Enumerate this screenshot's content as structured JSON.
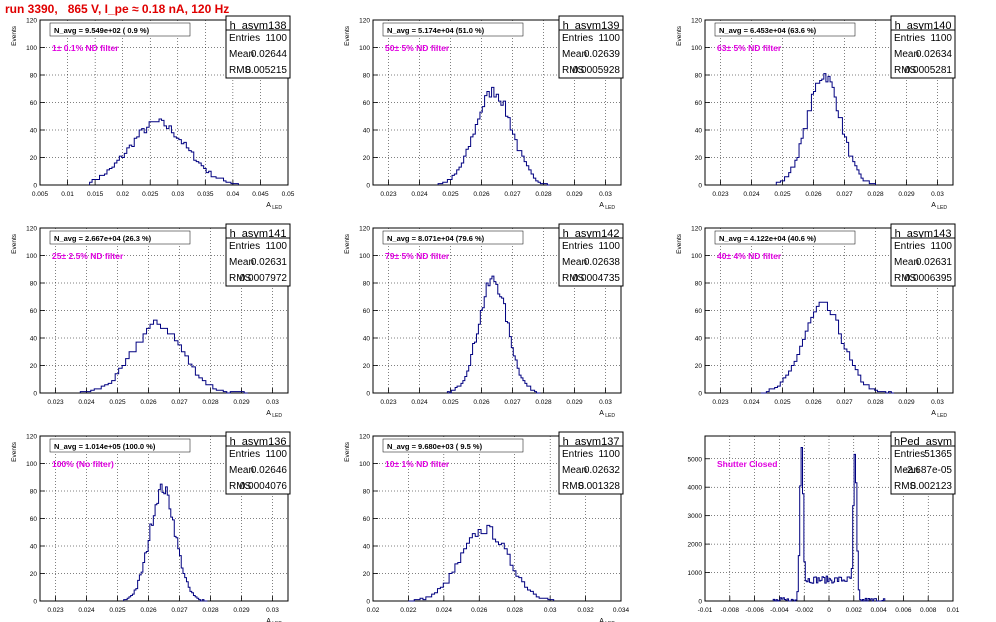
{
  "run_title": "run 3390,   865 V, I_pe ≈ 0.18 nA, 120 Hz",
  "stats_labels": {
    "entries": "Entries",
    "mean": "Mean",
    "rms": "RMS"
  },
  "colors": {
    "histogram": "#000080",
    "title": "#e00000",
    "annotation": "#e000e0",
    "grid": "#000000"
  },
  "chart_data": [
    {
      "type": "histogram",
      "name": "h_asym138",
      "entries": "1100",
      "mean": "0.02644",
      "rms": "0.005215",
      "navg": "N_avg = 9.549e+02 ( 0.9 %)",
      "filter": "1± 0.1% ND filter",
      "xlim": [
        0.005,
        0.05
      ],
      "ylim": [
        0,
        120
      ],
      "xticks": [
        0.005,
        0.01,
        0.015,
        0.02,
        0.025,
        0.03,
        0.035,
        0.04,
        0.045,
        0.05
      ],
      "xticklabels": [
        "0.005",
        "0.01",
        "0.015",
        "0.02",
        "0.025",
        "0.03",
        "0.035",
        "0.04",
        "0.045",
        "0.05"
      ],
      "yticks": [
        0,
        20,
        40,
        60,
        80,
        100,
        120
      ],
      "yticklabels": [
        "0",
        "20",
        "40",
        "60",
        "80",
        "100",
        "120"
      ],
      "xlabel": "A_LED",
      "ylabel": "Events",
      "profile": {
        "center": 0.02644,
        "sigma": 0.0052,
        "peak": 45,
        "xmin": 0.014,
        "xmax": 0.041,
        "bins": 60
      }
    },
    {
      "type": "histogram",
      "name": "h_asym139",
      "entries": "1100",
      "mean": "0.02639",
      "rms": "0.0005928",
      "navg": "N_avg = 5.174e+04 (51.0 %)",
      "filter": "50± 5% ND filter",
      "xlim": [
        0.0225,
        0.0305
      ],
      "ylim": [
        0,
        120
      ],
      "xticks": [
        0.023,
        0.024,
        0.025,
        0.026,
        0.027,
        0.028,
        0.029,
        0.03
      ],
      "xticklabels": [
        "0.023",
        "0.024",
        "0.025",
        "0.026",
        "0.027",
        "0.028",
        "0.029",
        "0.03"
      ],
      "yticks": [
        0,
        20,
        40,
        60,
        80,
        100,
        120
      ],
      "yticklabels": [
        "0",
        "20",
        "40",
        "60",
        "80",
        "100",
        "120"
      ],
      "xlabel": "A_LED",
      "ylabel": "Events",
      "profile": {
        "center": 0.02639,
        "sigma": 0.00059,
        "peak": 68,
        "xmin": 0.0246,
        "xmax": 0.0282,
        "bins": 48
      }
    },
    {
      "type": "histogram",
      "name": "h_asym140",
      "entries": "1100",
      "mean": "0.02634",
      "rms": "0.0005281",
      "navg": "N_avg = 6.453e+04 (63.6 %)",
      "filter": "63± 5% ND filter",
      "xlim": [
        0.0225,
        0.0305
      ],
      "ylim": [
        0,
        120
      ],
      "xticks": [
        0.023,
        0.024,
        0.025,
        0.026,
        0.027,
        0.028,
        0.029,
        0.03
      ],
      "xticklabels": [
        "0.023",
        "0.024",
        "0.025",
        "0.026",
        "0.027",
        "0.028",
        "0.029",
        "0.03"
      ],
      "yticks": [
        0,
        20,
        40,
        60,
        80,
        100,
        120
      ],
      "yticklabels": [
        "0",
        "20",
        "40",
        "60",
        "80",
        "100",
        "120"
      ],
      "xlabel": "A_LED",
      "ylabel": "Events",
      "profile": {
        "center": 0.02634,
        "sigma": 0.00053,
        "peak": 80,
        "xmin": 0.0248,
        "xmax": 0.028,
        "bins": 48
      }
    },
    {
      "type": "histogram",
      "name": "h_asym141",
      "entries": "1100",
      "mean": "0.02631",
      "rms": "0.0007972",
      "navg": "N_avg = 2.667e+04 (26.3 %)",
      "filter": "25± 2.5% ND filter",
      "xlim": [
        0.0225,
        0.0305
      ],
      "ylim": [
        0,
        120
      ],
      "xticks": [
        0.023,
        0.024,
        0.025,
        0.026,
        0.027,
        0.028,
        0.029,
        0.03
      ],
      "xticklabels": [
        "0.023",
        "0.024",
        "0.025",
        "0.026",
        "0.027",
        "0.028",
        "0.029",
        "0.03"
      ],
      "yticks": [
        0,
        20,
        40,
        60,
        80,
        100,
        120
      ],
      "yticklabels": [
        "0",
        "20",
        "40",
        "60",
        "80",
        "100",
        "120"
      ],
      "xlabel": "A_LED",
      "ylabel": "Events",
      "profile": {
        "center": 0.02631,
        "sigma": 0.0008,
        "peak": 50,
        "xmin": 0.0238,
        "xmax": 0.0292,
        "bins": 48
      }
    },
    {
      "type": "histogram",
      "name": "h_asym142",
      "entries": "1100",
      "mean": "0.02638",
      "rms": "0.0004735",
      "navg": "N_avg = 8.071e+04 (79.6 %)",
      "filter": "79± 5% ND filter",
      "xlim": [
        0.0225,
        0.0305
      ],
      "ylim": [
        0,
        120
      ],
      "xticks": [
        0.023,
        0.024,
        0.025,
        0.026,
        0.027,
        0.028,
        0.029,
        0.03
      ],
      "xticklabels": [
        "0.023",
        "0.024",
        "0.025",
        "0.026",
        "0.027",
        "0.028",
        "0.029",
        "0.03"
      ],
      "yticks": [
        0,
        20,
        40,
        60,
        80,
        100,
        120
      ],
      "yticklabels": [
        "0",
        "20",
        "40",
        "60",
        "80",
        "100",
        "120"
      ],
      "xlabel": "A_LED",
      "ylabel": "Events",
      "profile": {
        "center": 0.02638,
        "sigma": 0.00047,
        "peak": 82,
        "xmin": 0.0249,
        "xmax": 0.0279,
        "bins": 48
      }
    },
    {
      "type": "histogram",
      "name": "h_asym143",
      "entries": "1100",
      "mean": "0.02631",
      "rms": "0.0006395",
      "navg": "N_avg = 4.122e+04 (40.6 %)",
      "filter": "40± 4% ND filter",
      "xlim": [
        0.0225,
        0.0305
      ],
      "ylim": [
        0,
        120
      ],
      "xticks": [
        0.023,
        0.024,
        0.025,
        0.026,
        0.027,
        0.028,
        0.029,
        0.03
      ],
      "xticklabels": [
        "0.023",
        "0.024",
        "0.025",
        "0.026",
        "0.027",
        "0.028",
        "0.029",
        "0.03"
      ],
      "yticks": [
        0,
        20,
        40,
        60,
        80,
        100,
        120
      ],
      "yticklabels": [
        "0",
        "20",
        "40",
        "60",
        "80",
        "100",
        "120"
      ],
      "xlabel": "A_LED",
      "ylabel": "Events",
      "profile": {
        "center": 0.02631,
        "sigma": 0.00064,
        "peak": 63,
        "xmin": 0.0243,
        "xmax": 0.0286,
        "bins": 48
      }
    },
    {
      "type": "histogram",
      "name": "h_asym136",
      "entries": "1100",
      "mean": "0.02646",
      "rms": "0.0004076",
      "navg": "N_avg = 1.014e+05 (100.0 %)",
      "filter": "100% (No filter)",
      "xlim": [
        0.0225,
        0.0305
      ],
      "ylim": [
        0,
        120
      ],
      "xticks": [
        0.023,
        0.024,
        0.025,
        0.026,
        0.027,
        0.028,
        0.029,
        0.03
      ],
      "xticklabels": [
        "0.023",
        "0.024",
        "0.025",
        "0.026",
        "0.027",
        "0.028",
        "0.029",
        "0.03"
      ],
      "yticks": [
        0,
        20,
        40,
        60,
        80,
        100,
        120
      ],
      "yticklabels": [
        "0",
        "20",
        "40",
        "60",
        "80",
        "100",
        "120"
      ],
      "xlabel": "A_LED",
      "ylabel": "Events",
      "profile": {
        "center": 0.02646,
        "sigma": 0.00041,
        "peak": 82,
        "xmin": 0.0252,
        "xmax": 0.0279,
        "bins": 48
      }
    },
    {
      "type": "histogram",
      "name": "h_asym137",
      "entries": "1100",
      "mean": "0.02632",
      "rms": "0.001328",
      "navg": "N_avg = 9.680e+03 ( 9.5 %)",
      "filter": "10± 1% ND filter",
      "xlim": [
        0.02,
        0.034
      ],
      "ylim": [
        0,
        120
      ],
      "xticks": [
        0.02,
        0.022,
        0.024,
        0.026,
        0.028,
        0.03,
        0.032,
        0.034
      ],
      "xticklabels": [
        "0.02",
        "0.022",
        "0.024",
        "0.026",
        "0.028",
        "0.03",
        "0.032",
        "0.034"
      ],
      "yticks": [
        0,
        20,
        40,
        60,
        80,
        100,
        120
      ],
      "yticklabels": [
        "0",
        "20",
        "40",
        "60",
        "80",
        "100",
        "120"
      ],
      "xlabel": "A_LED",
      "ylabel": "Events",
      "profile": {
        "center": 0.02632,
        "sigma": 0.00133,
        "peak": 52,
        "xmin": 0.022,
        "xmax": 0.0302,
        "bins": 50
      }
    },
    {
      "type": "histogram",
      "name": "hPed_asym",
      "entries": "51365",
      "mean": "-2.687e-05",
      "rms": "0.002123",
      "navg": "",
      "filter": "Shutter Closed",
      "xlim": [
        -0.01,
        0.01
      ],
      "ylim": [
        0,
        5800
      ],
      "xticks": [
        -0.01,
        -0.008,
        -0.006,
        -0.004,
        -0.002,
        0,
        0.002,
        0.004,
        0.006,
        0.008,
        0.01
      ],
      "xticklabels": [
        "-0.01",
        "-0.008",
        "-0.006",
        "-0.004",
        "-0.002",
        "0",
        "0.002",
        "0.004",
        "0.006",
        "0.008",
        "0.01"
      ],
      "yticks": [
        0,
        1000,
        2000,
        3000,
        4000,
        5000
      ],
      "yticklabels": [
        "0",
        "1000",
        "2000",
        "3000",
        "4000",
        "5000"
      ],
      "xlabel": "",
      "ylabel": "",
      "profile": {
        "kind": "double",
        "peak1": {
          "center": -0.0022,
          "sigma": 0.00014,
          "peak": 5400
        },
        "peak2": {
          "center": 0.0021,
          "sigma": 0.00014,
          "peak": 5200
        },
        "floor": 750,
        "xmin": -0.0045,
        "xmax": 0.0045,
        "bins": 80
      }
    }
  ]
}
